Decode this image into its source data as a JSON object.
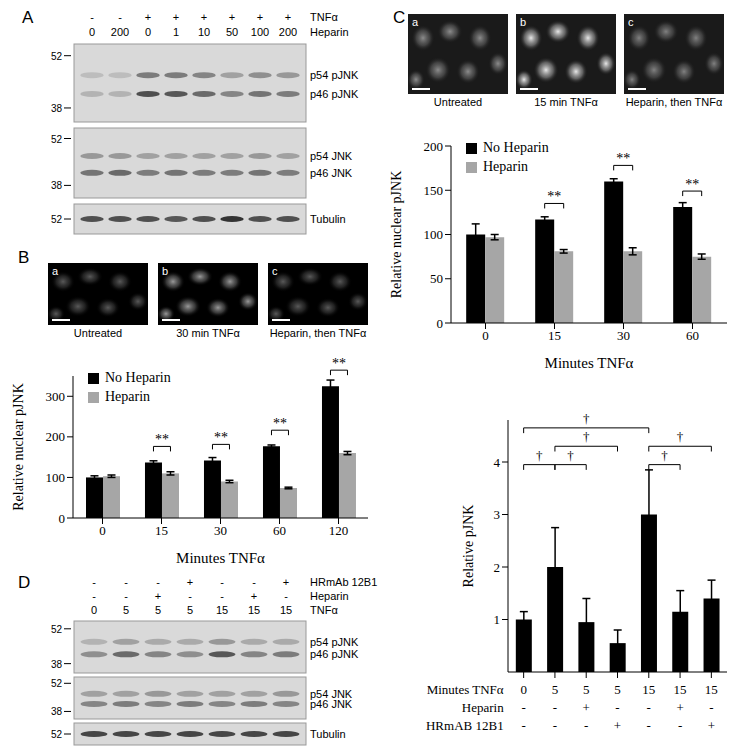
{
  "panel_labels": [
    "A",
    "B",
    "C",
    "D"
  ],
  "blot_A": {
    "rows": [
      {
        "name": "TNFα",
        "values": [
          "-",
          "-",
          "+",
          "+",
          "+",
          "+",
          "+",
          "+"
        ]
      },
      {
        "name": "Heparin",
        "values": [
          "0",
          "200",
          "0",
          "1",
          "10",
          "50",
          "100",
          "200"
        ]
      }
    ],
    "strips": [
      {
        "bands": [
          "p54 pJNK",
          "p46 pJNK"
        ],
        "markers": [
          52,
          38
        ]
      },
      {
        "bands": [
          "p54 JNK",
          "p46 JNK"
        ],
        "markers": [
          52,
          38
        ]
      },
      {
        "bands": [
          "Tubulin"
        ],
        "markers": [
          52
        ]
      }
    ]
  },
  "images_B": {
    "letters": [
      "a",
      "b",
      "c"
    ],
    "captions": [
      "Untreated",
      "30 min TNFα",
      "Heparin, then TNFα"
    ]
  },
  "images_C": {
    "letters": [
      "a",
      "b",
      "c"
    ],
    "captions": [
      "Untreated",
      "15 min TNFα",
      "Heparin, then TNFα"
    ]
  },
  "blot_D": {
    "rows": [
      {
        "name": "HRmAb 12B1",
        "values": [
          "-",
          "-",
          "-",
          "+",
          "-",
          "-",
          "+"
        ]
      },
      {
        "name": "Heparin",
        "values": [
          "-",
          "-",
          "+",
          "-",
          "-",
          "+",
          "-"
        ]
      },
      {
        "name": "TNFα",
        "values": [
          "0",
          "5",
          "5",
          "5",
          "15",
          "15",
          "15"
        ]
      }
    ],
    "strips": [
      {
        "bands": [
          "p54 pJNK",
          "p46 pJNK"
        ],
        "markers": [
          52,
          38
        ]
      },
      {
        "bands": [
          "p54 JNK",
          "p46 JNK"
        ],
        "markers": [
          52,
          38
        ]
      },
      {
        "bands": [
          "Tubulin"
        ],
        "markers": [
          52
        ]
      }
    ]
  },
  "chart_data": [
    {
      "panel": "B",
      "type": "bar",
      "x_label": "Minutes TNFα",
      "y_label": "Relative nuclear pJNK",
      "categories": [
        "0",
        "15",
        "30",
        "60",
        "120"
      ],
      "ylim": [
        0,
        350
      ],
      "yticks": [
        0,
        100,
        200,
        300
      ],
      "legend": "top-left",
      "series": [
        {
          "name": "No Heparin",
          "color": "#000000",
          "values": [
            100,
            137,
            142,
            177,
            325
          ],
          "errors": [
            4,
            4,
            7,
            3,
            15
          ]
        },
        {
          "name": "Heparin",
          "color": "#a6a6a6",
          "values": [
            103,
            110,
            90,
            74,
            160
          ],
          "errors": [
            3,
            4,
            3,
            2,
            4
          ]
        }
      ],
      "significance": {
        "label": "**",
        "categories": [
          "15",
          "30",
          "60",
          "120"
        ]
      }
    },
    {
      "panel": "C",
      "type": "bar",
      "x_label": "Minutes TNFα",
      "y_label": "Relative nuclear pJNK",
      "categories": [
        "0",
        "15",
        "30",
        "60"
      ],
      "ylim": [
        0,
        200
      ],
      "yticks": [
        0,
        50,
        100,
        150,
        200
      ],
      "legend": "top-left",
      "series": [
        {
          "name": "No Heparin",
          "color": "#000000",
          "values": [
            100,
            117,
            160,
            131
          ],
          "errors": [
            12,
            3,
            3,
            5
          ]
        },
        {
          "name": "Heparin",
          "color": "#a6a6a6",
          "values": [
            97,
            81,
            81,
            75
          ],
          "errors": [
            3,
            2,
            4,
            3
          ]
        }
      ],
      "significance": {
        "label": "**",
        "categories": [
          "15",
          "30",
          "60"
        ]
      }
    },
    {
      "panel": "D",
      "type": "bar",
      "x_label": "Minutes TNFα",
      "y_label": "Relative pJNK",
      "categories": [
        "0",
        "5",
        "5",
        "5",
        "15",
        "15",
        "15"
      ],
      "treatment_rows": [
        {
          "name": "Heparin",
          "values": [
            "-",
            "-",
            "+",
            "-",
            "-",
            "+",
            "-"
          ]
        },
        {
          "name": "HRmAB 12B1",
          "values": [
            "-",
            "-",
            "-",
            "+",
            "-",
            "-",
            "+"
          ]
        }
      ],
      "ylim": [
        0,
        4.8
      ],
      "yticks": [
        1,
        2,
        3,
        4
      ],
      "color": "#000000",
      "values": [
        1,
        2,
        0.95,
        0.55,
        3,
        1.15,
        1.4
      ],
      "errors": [
        0.15,
        0.75,
        0.45,
        0.25,
        0.85,
        0.4,
        0.35
      ],
      "significance": {
        "label": "†",
        "pairs": [
          [
            0,
            4
          ],
          [
            1,
            3
          ],
          [
            4,
            6
          ],
          [
            0,
            1
          ],
          [
            1,
            2
          ],
          [
            4,
            5
          ]
        ]
      }
    }
  ]
}
